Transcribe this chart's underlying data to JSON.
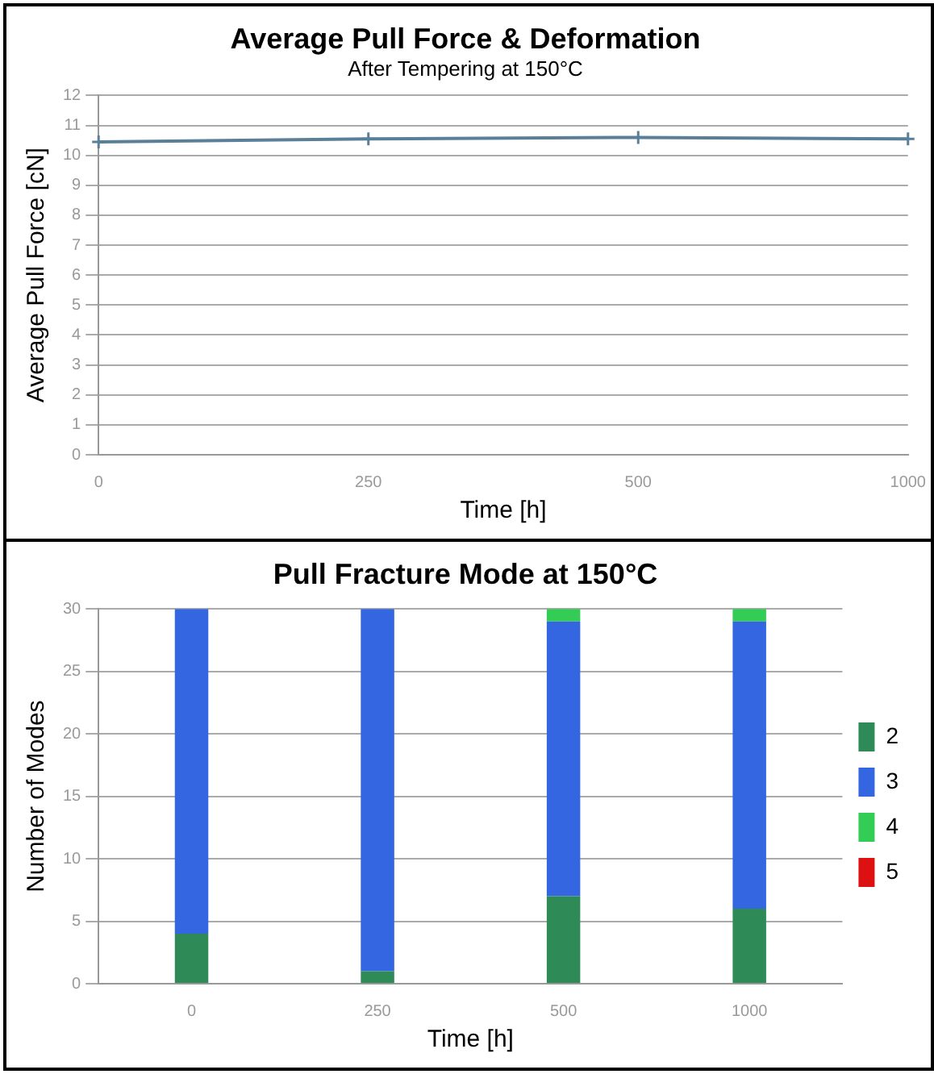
{
  "chart_data": [
    {
      "type": "line",
      "title": "Average Pull Force & Deformation",
      "subtitle": "After Tempering at 150°C",
      "xlabel": "Time [h]",
      "ylabel": "Average Pull Force [cN]",
      "categories": [
        "0",
        "250",
        "500",
        "1000"
      ],
      "series": [
        {
          "color": "#5a7f98",
          "values": [
            10.45,
            10.55,
            10.6,
            10.55
          ]
        }
      ],
      "ylim": [
        0,
        12
      ],
      "yticks": [
        0,
        1,
        2,
        3,
        4,
        5,
        6,
        7,
        8,
        9,
        10,
        11,
        12
      ],
      "grid": "y",
      "marker": "cross",
      "legend": false
    },
    {
      "type": "bar",
      "stacked": true,
      "title": "Pull Fracture Mode at 150°C",
      "xlabel": "Time [h]",
      "ylabel": "Number of Modes",
      "categories": [
        "0",
        "250",
        "500",
        "1000"
      ],
      "series": [
        {
          "name": "2",
          "color": "#2e8b57",
          "values": [
            4,
            1,
            7,
            6
          ]
        },
        {
          "name": "3",
          "color": "#3366e0",
          "values": [
            26,
            29,
            22,
            23
          ]
        },
        {
          "name": "4",
          "color": "#33cc55",
          "values": [
            0,
            0,
            1,
            1
          ]
        },
        {
          "name": "5",
          "color": "#dd1111",
          "values": [
            0,
            0,
            0,
            0
          ]
        }
      ],
      "ylim": [
        0,
        30
      ],
      "yticks": [
        0,
        5,
        10,
        15,
        20,
        25,
        30
      ],
      "grid": "y",
      "legend": "right"
    }
  ]
}
